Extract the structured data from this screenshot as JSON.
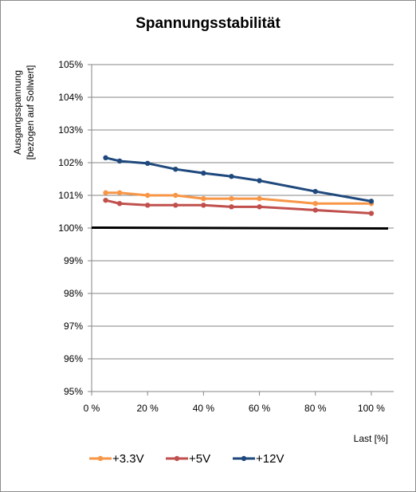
{
  "chart_data": {
    "type": "line",
    "title": "Spannungsstabilität",
    "ylabel": [
      "Ausgangsspannung",
      "[bezogen auf Sollwert]"
    ],
    "xlabel": "Last [%]",
    "xlim": [
      0,
      108
    ],
    "ylim": [
      95,
      105
    ],
    "xticks": [
      0,
      20,
      40,
      60,
      80,
      100
    ],
    "xtick_labels": [
      "0 %",
      "20 %",
      "40 %",
      "60 %",
      "80 %",
      "100 %"
    ],
    "yticks": [
      95,
      96,
      97,
      98,
      99,
      100,
      101,
      102,
      103,
      104,
      105
    ],
    "ytick_labels": [
      "95%",
      "96%",
      "97%",
      "98%",
      "99%",
      "100%",
      "101%",
      "102%",
      "103%",
      "104%",
      "105%"
    ],
    "grid": "horizontal",
    "legend_position": "bottom",
    "x": [
      5,
      10,
      20,
      30,
      40,
      50,
      60,
      80,
      100
    ],
    "series": [
      {
        "name": "+3.3V",
        "color": "#f79646",
        "values": [
          101.08,
          101.08,
          101.0,
          101.0,
          100.9,
          100.9,
          100.9,
          100.75,
          100.75
        ]
      },
      {
        "name": "+5V",
        "color": "#c0504d",
        "values": [
          100.85,
          100.75,
          100.7,
          100.7,
          100.7,
          100.65,
          100.65,
          100.55,
          100.45
        ]
      },
      {
        "name": "+12V",
        "color": "#1f497d",
        "values": [
          102.15,
          102.05,
          101.98,
          101.8,
          101.68,
          101.58,
          101.45,
          101.12,
          100.82
        ]
      }
    ],
    "reference_line": {
      "y": 100,
      "x_range": [
        0,
        108
      ],
      "color": "#000000"
    }
  }
}
